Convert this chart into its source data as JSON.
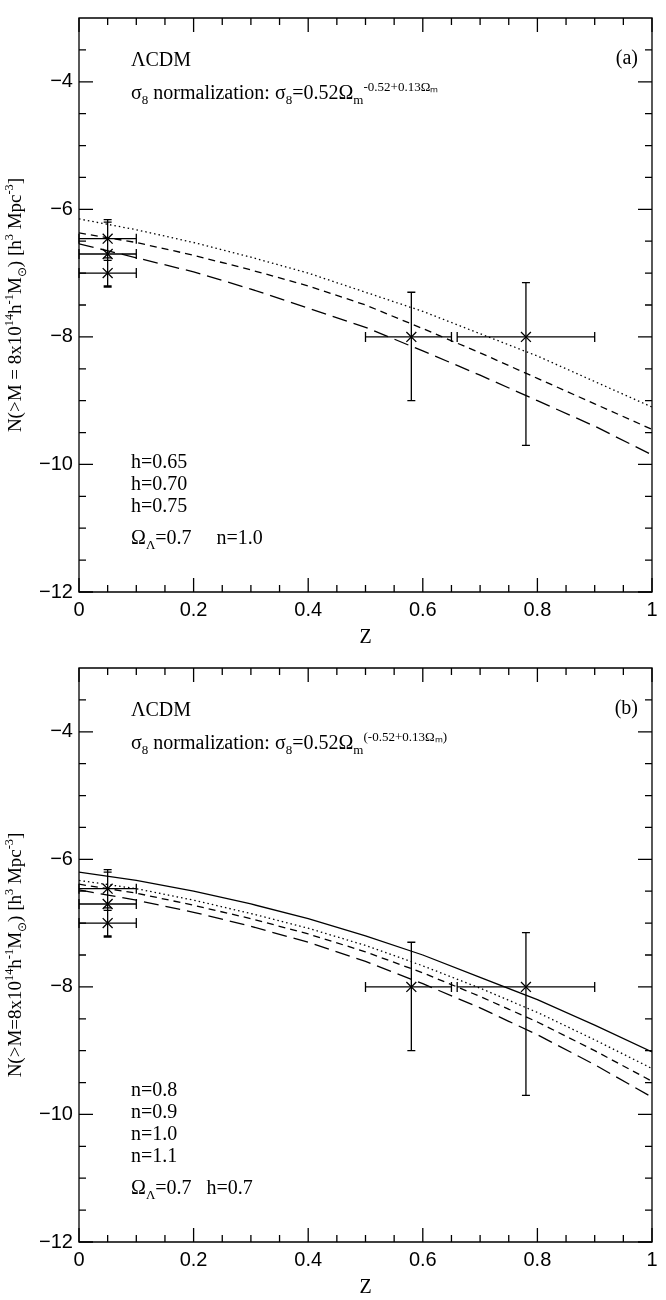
{
  "chart_data": [
    {
      "type": "line",
      "xlabel": "Z",
      "ylabel": "N(>M = 8x10$^{14}$h$^{-1}$M$_{⊙}$) [h$^{3}$ Mpc$^{-3}$]",
      "annotations": [
        "ΛCDM",
        "σ$_{8}$ normalization: σ$_{8}$=0.52Ω$_{m}$$^{-0.52+0.13Ωₘ}$",
        "(a)",
        "h=0.65",
        "h=0.70",
        "h=0.75",
        "Ω$_{Λ}$=0.7     n=1.0"
      ],
      "xlim": [
        0,
        1
      ],
      "ylim": [
        -12,
        -3
      ],
      "xticks": [
        0,
        {
          "value": 0.05,
          "label": null
        },
        {
          "value": 0.1,
          "label": null
        },
        {
          "value": 0.15,
          "label": null
        },
        0.2,
        {
          "value": 0.25,
          "label": null
        },
        {
          "value": 0.3,
          "label": null
        },
        {
          "value": 0.35,
          "label": null
        },
        0.4,
        {
          "value": 0.45,
          "label": null
        },
        {
          "value": 0.5,
          "label": null
        },
        {
          "value": 0.55,
          "label": null
        },
        0.6,
        {
          "value": 0.65,
          "label": null
        },
        {
          "value": 0.7,
          "label": null
        },
        {
          "value": 0.75,
          "label": null
        },
        0.8,
        {
          "value": 0.85,
          "label": null
        },
        {
          "value": 0.9,
          "label": null
        },
        {
          "value": 0.95,
          "label": null
        },
        1
      ],
      "yticks": [
        -12,
        {
          "value": -11.5,
          "label": null
        },
        {
          "value": -11,
          "label": null
        },
        {
          "value": -10.5,
          "label": null
        },
        -10,
        {
          "value": -9.5,
          "label": null
        },
        {
          "value": -9,
          "label": null
        },
        {
          "value": -8.5,
          "label": null
        },
        -8,
        {
          "value": -7.5,
          "label": null
        },
        {
          "value": -7,
          "label": null
        },
        {
          "value": -6.5,
          "label": null
        },
        -6,
        {
          "value": -5.5,
          "label": null
        },
        {
          "value": -5,
          "label": null
        },
        {
          "value": -4.5,
          "label": null
        },
        -4,
        {
          "value": -3.5,
          "label": null
        }
      ],
      "grid": false,
      "legend": false,
      "marker": "none",
      "series": [
        {
          "type": "line",
          "line_style": "dotted",
          "color": "#000000",
          "x": [
            0,
            0.1,
            0.2,
            0.3,
            0.4,
            0.5,
            0.6,
            0.7,
            0.8,
            0.9,
            1
          ],
          "values": [
            -6.15,
            -6.32,
            -6.52,
            -6.75,
            -7.0,
            -7.3,
            -7.6,
            -7.95,
            -8.3,
            -8.7,
            -9.1
          ]
        },
        {
          "type": "line",
          "line_style": "dashed",
          "color": "#000000",
          "x": [
            0,
            0.1,
            0.2,
            0.3,
            0.4,
            0.5,
            0.6,
            0.7,
            0.8,
            0.9,
            1
          ],
          "values": [
            -6.37,
            -6.52,
            -6.72,
            -6.95,
            -7.2,
            -7.5,
            -7.87,
            -8.25,
            -8.65,
            -9.05,
            -9.45
          ]
        },
        {
          "type": "line",
          "line_style": "dashed",
          "color": "#000000",
          "x": [
            0,
            0.1,
            0.2,
            0.3,
            0.4,
            0.5,
            0.6,
            0.7,
            0.8,
            0.9,
            1
          ],
          "values": [
            -6.54,
            -6.76,
            -6.98,
            -7.25,
            -7.55,
            -7.85,
            -8.22,
            -8.6,
            -9.0,
            -9.4,
            -9.85
          ]
        },
        {
          "type": "scatter",
          "marker": "cross",
          "color": "#000000",
          "x": [
            0.05,
            0.05,
            0.05,
            0.58,
            0.78
          ],
          "values": [
            -6.46,
            -6.7,
            -7.0,
            -8,
            -8
          ],
          "errors": [
            [
              -6.76,
              -6.16
            ],
            [
              -7.2,
              -6.2
            ],
            [
              -7.22,
              -6.8
            ],
            [
              -9.0,
              -7.3
            ],
            [
              -9.7,
              -7.15
            ]
          ],
          "xerrors": [
            [
              0,
              0.1
            ],
            [
              0,
              0.1
            ],
            [
              0,
              0.1
            ],
            [
              0.5,
              0.65
            ],
            [
              0.66,
              0.9
            ]
          ]
        }
      ]
    },
    {
      "type": "line",
      "xlabel": "Z",
      "ylabel": "N(>M=8x10$^{14}$h$^{-1}$M$_{⊙}$) [h$^{3}$ Mpc$^{-3}$]",
      "annotations": [
        "ΛCDM",
        "σ$_{8}$ normalization: σ$_{8}$=0.52Ω$_{m}$$^{(-0.52+0.13Ωₘ)}$",
        "(b)",
        "n=0.8",
        "n=0.9",
        "n=1.0",
        "n=1.1",
        "Ω$_{Λ}$=0.7   h=0.7"
      ],
      "xlim": [
        0,
        1
      ],
      "ylim": [
        -12,
        -3
      ],
      "xticks": [
        0,
        {
          "value": 0.05,
          "label": null
        },
        {
          "value": 0.1,
          "label": null
        },
        {
          "value": 0.15,
          "label": null
        },
        0.2,
        {
          "value": 0.25,
          "label": null
        },
        {
          "value": 0.3,
          "label": null
        },
        {
          "value": 0.35,
          "label": null
        },
        0.4,
        {
          "value": 0.45,
          "label": null
        },
        {
          "value": 0.5,
          "label": null
        },
        {
          "value": 0.55,
          "label": null
        },
        0.6,
        {
          "value": 0.65,
          "label": null
        },
        {
          "value": 0.7,
          "label": null
        },
        {
          "value": 0.75,
          "label": null
        },
        0.8,
        {
          "value": 0.85,
          "label": null
        },
        {
          "value": 0.9,
          "label": null
        },
        {
          "value": 0.95,
          "label": null
        },
        1
      ],
      "yticks": [
        -12,
        {
          "value": -11.5,
          "label": null
        },
        {
          "value": -11,
          "label": null
        },
        {
          "value": -10.5,
          "label": null
        },
        -10,
        {
          "value": -9.5,
          "label": null
        },
        {
          "value": -9,
          "label": null
        },
        {
          "value": -8.5,
          "label": null
        },
        -8,
        {
          "value": -7.5,
          "label": null
        },
        {
          "value": -7,
          "label": null
        },
        {
          "value": -6.5,
          "label": null
        },
        -6,
        {
          "value": -5.5,
          "label": null
        },
        {
          "value": -5,
          "label": null
        },
        {
          "value": -4.5,
          "label": null
        },
        -4,
        {
          "value": -3.5,
          "label": null
        }
      ],
      "grid": false,
      "legend": false,
      "marker": "none",
      "series": [
        {
          "type": "line",
          "line_style": "solid",
          "color": "#000000",
          "x": [
            0,
            0.1,
            0.2,
            0.3,
            0.4,
            0.5,
            0.6,
            0.7,
            0.8,
            0.9,
            1
          ],
          "values": [
            -6.2,
            -6.33,
            -6.5,
            -6.7,
            -6.93,
            -7.2,
            -7.5,
            -7.85,
            -8.2,
            -8.6,
            -9.02
          ]
        },
        {
          "type": "line",
          "line_style": "dotted",
          "color": "#000000",
          "x": [
            0,
            0.1,
            0.2,
            0.3,
            0.4,
            0.5,
            0.6,
            0.7,
            0.8,
            0.9,
            1
          ],
          "values": [
            -6.33,
            -6.46,
            -6.64,
            -6.85,
            -7.08,
            -7.35,
            -7.67,
            -8.02,
            -8.4,
            -8.83,
            -9.28
          ]
        },
        {
          "type": "line",
          "line_style": "dashed",
          "color": "#000000",
          "x": [
            0,
            0.1,
            0.2,
            0.3,
            0.4,
            0.5,
            0.6,
            0.7,
            0.8,
            0.9,
            1
          ],
          "values": [
            -6.39,
            -6.53,
            -6.72,
            -6.93,
            -7.17,
            -7.45,
            -7.78,
            -8.15,
            -8.55,
            -9.0,
            -9.48
          ]
        },
        {
          "type": "line",
          "line_style": "dashed",
          "color": "#000000",
          "x": [
            0,
            0.1,
            0.2,
            0.3,
            0.4,
            0.5,
            0.6,
            0.7,
            0.8,
            0.9,
            1
          ],
          "values": [
            -6.48,
            -6.64,
            -6.83,
            -7.05,
            -7.3,
            -7.6,
            -7.95,
            -8.33,
            -8.75,
            -9.22,
            -9.73
          ]
        },
        {
          "type": "scatter",
          "marker": "cross",
          "color": "#000000",
          "x": [
            0.05,
            0.05,
            0.05,
            0.58,
            0.78
          ],
          "values": [
            -6.46,
            -6.7,
            -7.0,
            -8,
            -8
          ],
          "errors": [
            [
              -6.76,
              -6.16
            ],
            [
              -7.2,
              -6.2
            ],
            [
              -7.22,
              -6.8
            ],
            [
              -9.0,
              -7.3
            ],
            [
              -9.7,
              -7.15
            ]
          ],
          "xerrors": [
            [
              0,
              0.1
            ],
            [
              0,
              0.1
            ],
            [
              0,
              0.1
            ],
            [
              0.5,
              0.65
            ],
            [
              0.66,
              0.9
            ]
          ]
        }
      ]
    }
  ]
}
